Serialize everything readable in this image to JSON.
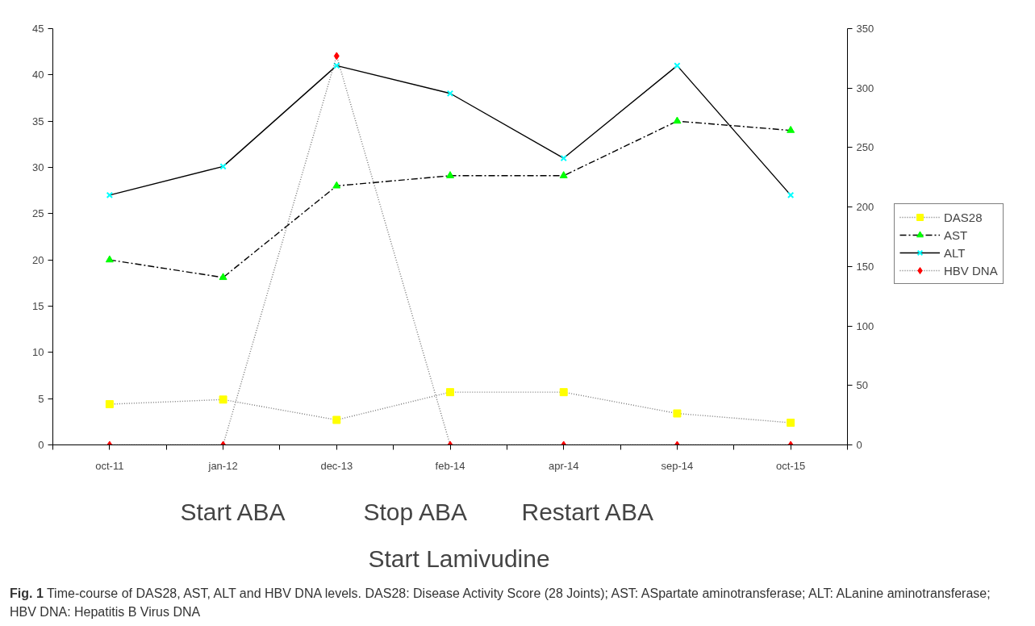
{
  "chart_data": {
    "type": "line",
    "categories": [
      "oct-11",
      "jan-12",
      "dec-13",
      "feb-14",
      "apr-14",
      "sep-14",
      "oct-15"
    ],
    "series": [
      {
        "name": "DAS28",
        "color": "#ffff00",
        "values": [
          4.4,
          4.9,
          2.7,
          5.7,
          5.7,
          3.4,
          2.4
        ],
        "marker": "square",
        "line_style": "dotted"
      },
      {
        "name": "AST",
        "color": "#00ff00",
        "values": [
          20,
          18.1,
          28,
          29.1,
          29.1,
          35,
          34
        ],
        "marker": "triangle",
        "line_style": "dashed"
      },
      {
        "name": "ALT",
        "color": "#00ffff",
        "values": [
          27,
          30.1,
          41,
          38,
          31,
          41,
          27
        ],
        "marker": "cross",
        "line_style": "solid"
      },
      {
        "name": "HBV DNA",
        "color": "#ff0000",
        "values": [
          0,
          0,
          327,
          0,
          0,
          0,
          0
        ],
        "marker": "diamond",
        "line_style": "dotted",
        "axis": "y2"
      }
    ],
    "ylim": [
      0,
      45
    ],
    "yticks": [
      0,
      5,
      10,
      15,
      20,
      25,
      30,
      35,
      40,
      45
    ],
    "y2lim": [
      0,
      350
    ],
    "y2ticks": [
      0,
      50,
      100,
      150,
      200,
      250,
      300,
      350
    ],
    "grid": false,
    "legend": "right",
    "annotations": [
      "Start ABA",
      "Stop ABA",
      "Restart ABA",
      "Start Lamivudine",
      "Fig. 1 Time-course of DAS28, AST, ALT and HBV DNA levels. DAS28: Disease Activity Score (28 Joints); AST: ASpartate aminotransferase; ALT: ALanine aminotransferase; HBV DNA: Hepatitis B Virus DNA"
    ]
  }
}
